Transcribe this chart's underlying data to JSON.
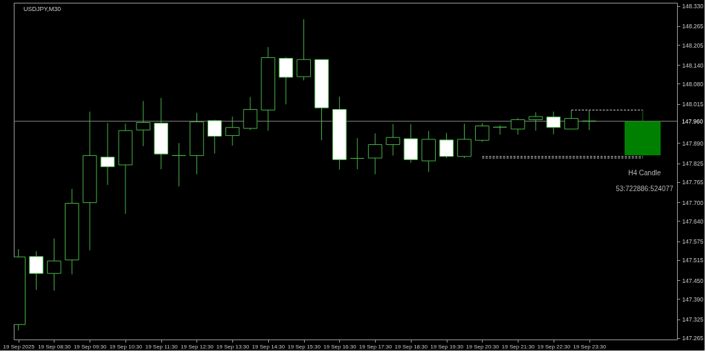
{
  "chart_data": {
    "type": "candlestick",
    "title": "USDJPY,M30",
    "series": [
      {
        "color": "#48b848",
        "x": [
          "2025-09-19T07:30",
          "2025-09-19T08:00",
          "2025-09-19T08:30",
          "2025-09-19T09:00",
          "2025-09-19T09:30",
          "2025-09-19T10:00",
          "2025-09-19T10:30",
          "2025-09-19T11:00",
          "2025-09-19T11:30",
          "2025-09-19T12:00",
          "2025-09-19T12:30",
          "2025-09-19T13:00",
          "2025-09-19T13:30",
          "2025-09-19T14:00",
          "2025-09-19T14:30",
          "2025-09-19T15:00",
          "2025-09-19T15:30",
          "2025-09-19T16:00",
          "2025-09-19T16:30",
          "2025-09-19T17:00",
          "2025-09-19T17:30",
          "2025-09-19T18:00",
          "2025-09-19T18:30",
          "2025-09-19T19:00",
          "2025-09-19T19:30",
          "2025-09-19T20:00",
          "2025-09-19T20:30",
          "2025-09-19T21:00",
          "2025-09-19T21:30",
          "2025-09-19T22:00",
          "2025-09-19T22:30",
          "2025-09-19T23:00",
          "2025-09-19T23:30"
        ],
        "ohlc": [
          [
            147.308,
            147.55,
            147.289,
            147.525
          ],
          [
            147.526,
            147.543,
            147.419,
            147.472
          ],
          [
            147.472,
            147.584,
            147.417,
            147.512
          ],
          [
            147.515,
            147.743,
            147.469,
            147.697
          ],
          [
            147.699,
            147.991,
            147.546,
            147.85
          ],
          [
            147.845,
            147.954,
            147.756,
            147.814
          ],
          [
            147.82,
            147.952,
            147.663,
            147.93
          ],
          [
            147.932,
            148.025,
            147.88,
            147.956
          ],
          [
            147.954,
            148.035,
            147.806,
            147.855
          ],
          [
            147.85,
            147.89,
            147.751,
            147.85
          ],
          [
            147.85,
            147.987,
            147.79,
            147.958
          ],
          [
            147.962,
            147.965,
            147.856,
            147.912
          ],
          [
            147.914,
            147.975,
            147.882,
            147.94
          ],
          [
            147.937,
            148.038,
            147.932,
            147.998
          ],
          [
            147.996,
            148.198,
            147.93,
            148.164
          ],
          [
            148.162,
            148.166,
            148.014,
            148.101
          ],
          [
            148.103,
            148.287,
            148.091,
            148.158
          ],
          [
            148.158,
            148.158,
            147.899,
            148.003
          ],
          [
            147.998,
            148.039,
            147.805,
            147.837
          ],
          [
            147.841,
            147.906,
            147.806,
            147.841
          ],
          [
            147.842,
            147.921,
            147.79,
            147.885
          ],
          [
            147.885,
            147.951,
            147.85,
            147.908
          ],
          [
            147.904,
            147.951,
            147.827,
            147.837
          ],
          [
            147.833,
            147.929,
            147.797,
            147.902
          ],
          [
            147.9,
            147.923,
            147.842,
            147.847
          ],
          [
            147.847,
            147.952,
            147.842,
            147.902
          ],
          [
            147.899,
            147.954,
            147.894,
            147.945
          ],
          [
            147.941,
            147.947,
            147.917,
            147.941
          ],
          [
            147.935,
            147.97,
            147.917,
            147.965
          ],
          [
            147.965,
            147.989,
            147.93,
            147.975
          ],
          [
            147.974,
            147.991,
            147.918,
            147.94
          ],
          [
            147.935,
            147.996,
            147.935,
            147.969
          ],
          [
            147.961,
            147.996,
            147.932,
            147.96
          ]
        ],
        "colors": [
          "#000000",
          "#ffffff",
          "#000000",
          "#000000",
          "#000000",
          "#ffffff",
          "#000000",
          "#000000",
          "#ffffff",
          "#48b848",
          "#000000",
          "#ffffff",
          "#000000",
          "#000000",
          "#000000",
          "#ffffff",
          "#000000",
          "#ffffff",
          "#ffffff",
          "#48b848",
          "#000000",
          "#000000",
          "#ffffff",
          "#000000",
          "#ffffff",
          "#000000",
          "#000000",
          "#48b848",
          "#000000",
          "#000000",
          "#ffffff",
          "#000000",
          "#ffffff"
        ]
      },
      {
        "color": "#008000",
        "x": [
          "2025-09-20T01:00"
        ],
        "ohlc": [
          [
            147.851,
            147.996,
            147.842,
            147.96
          ]
        ]
      },
      {
        "type": "line",
        "color": "#d9d9d9",
        "line_style": "dashed",
        "x": [
          "2025-09-19T23:00",
          "2025-09-20T01:00"
        ],
        "values": [
          147.996,
          147.996
        ]
      },
      {
        "type": "line",
        "color": "#d9d9d9",
        "line_style": "dashed",
        "x": [
          "2025-09-19T20:30",
          "2025-09-20T01:00"
        ],
        "values": [
          147.847,
          147.847
        ]
      },
      {
        "type": "line",
        "color": "#d9d9d9",
        "line_style": "dashed",
        "x": [
          "2025-09-19T20:30",
          "2025-09-20T01:00"
        ],
        "values": [
          147.842,
          147.842
        ]
      }
    ],
    "xlim": [
      "2025-09-19T07:28",
      "2025-09-20T01:52"
    ],
    "xticks": [
      {
        "value": "2025-09-19T07:30",
        "label": "19 Sep 2025"
      },
      {
        "value": "2025-09-19T08:30",
        "label": "19 Sep 08:30"
      },
      {
        "value": "2025-09-19T09:30",
        "label": "19 Sep 09:30"
      },
      {
        "value": "2025-09-19T10:30",
        "label": "19 Sep 10:30"
      },
      {
        "value": "2025-09-19T11:30",
        "label": "19 Sep 11:30"
      },
      {
        "value": "2025-09-19T12:30",
        "label": "19 Sep 12:30"
      },
      {
        "value": "2025-09-19T13:30",
        "label": "19 Sep 13:30"
      },
      {
        "value": "2025-09-19T14:30",
        "label": "19 Sep 14:30"
      },
      {
        "value": "2025-09-19T15:30",
        "label": "19 Sep 15:30"
      },
      {
        "value": "2025-09-19T16:30",
        "label": "19 Sep 16:30"
      },
      {
        "value": "2025-09-19T17:30",
        "label": "19 Sep 17:30"
      },
      {
        "value": "2025-09-19T18:30",
        "label": "19 Sep 18:30"
      },
      {
        "value": "2025-09-19T19:30",
        "label": "19 Sep 19:30"
      },
      {
        "value": "2025-09-19T20:30",
        "label": "19 Sep 20:30"
      },
      {
        "value": "2025-09-19T21:30",
        "label": "19 Sep 21:30"
      },
      {
        "value": "2025-09-19T22:30",
        "label": "19 Sep 22:30"
      },
      {
        "value": "2025-09-19T23:30",
        "label": "19 Sep 23:30"
      }
    ],
    "ylim": [
      147.26,
      148.34
    ],
    "yticks": [
      {
        "value": 148.33,
        "label": "148.330"
      },
      {
        "value": 148.265,
        "label": "148.265"
      },
      {
        "value": 148.205,
        "label": "148.205"
      },
      {
        "value": 148.14,
        "label": "148.140"
      },
      {
        "value": 148.08,
        "label": "148.080"
      },
      {
        "value": 148.015,
        "label": "148.015"
      },
      {
        "value": 147.89,
        "label": "147.890"
      },
      {
        "value": 147.825,
        "label": "147.825"
      },
      {
        "value": 147.765,
        "label": "147.765"
      },
      {
        "value": 147.7,
        "label": "147.700"
      },
      {
        "value": 147.64,
        "label": "147.640"
      },
      {
        "value": 147.575,
        "label": "147.575"
      },
      {
        "value": 147.515,
        "label": "147.515"
      },
      {
        "value": 147.45,
        "label": "147.450"
      },
      {
        "value": 147.39,
        "label": "147.390"
      },
      {
        "value": 147.325,
        "label": "147.325"
      },
      {
        "value": 147.265,
        "label": "147.265"
      }
    ],
    "ref_lines": [
      {
        "axis": "y",
        "value": 147.96,
        "label": "147.960",
        "color": "#8c8c8c"
      }
    ],
    "annotations": [
      "H4 Candle",
      "53:722886:524077"
    ]
  }
}
